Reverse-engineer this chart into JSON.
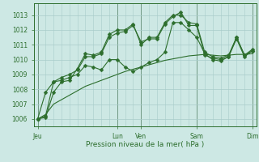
{
  "bg_color": "#cde8e4",
  "grid_color": "#a8ccca",
  "line_color": "#2d6e2d",
  "marker_color": "#2d6e2d",
  "xlabel": "Pression niveau de la mer( hPa )",
  "ylim": [
    1005.5,
    1013.8
  ],
  "yticks": [
    1006,
    1007,
    1008,
    1009,
    1010,
    1011,
    1012,
    1013
  ],
  "xtick_labels": [
    "Jeu",
    "Lun",
    "Ven",
    "Sam",
    "Dim"
  ],
  "xtick_positions": [
    0,
    10,
    13,
    20,
    27
  ],
  "n_points": 28,
  "series1": [
    1006.0,
    1006.1,
    1007.8,
    1008.5,
    1008.6,
    1009.4,
    1010.4,
    1010.3,
    1010.5,
    1011.7,
    1012.0,
    1012.0,
    1012.4,
    1011.0,
    1011.5,
    1011.5,
    1012.5,
    1013.0,
    1013.0,
    1012.5,
    1012.4,
    1010.5,
    1010.2,
    1010.1,
    1010.3,
    1011.5,
    1010.3,
    1010.7
  ],
  "series2": [
    1006.0,
    1007.8,
    1008.5,
    1008.8,
    1009.0,
    1009.3,
    1010.2,
    1010.2,
    1010.4,
    1011.5,
    1011.8,
    1011.9,
    1012.3,
    1011.2,
    1011.4,
    1011.4,
    1012.4,
    1012.9,
    1013.2,
    1012.3,
    1012.3,
    1010.3,
    1010.1,
    1010.0,
    1010.2,
    1011.4,
    1010.2,
    1010.6
  ],
  "series3": [
    1006.0,
    1006.2,
    1008.5,
    1008.6,
    1008.8,
    1009.0,
    1009.6,
    1009.5,
    1009.3,
    1010.0,
    1010.0,
    1009.5,
    1009.2,
    1009.5,
    1009.8,
    1010.0,
    1010.5,
    1012.5,
    1012.5,
    1012.0,
    1011.5,
    1010.4,
    1010.0,
    1009.9,
    1010.2,
    1011.5,
    1010.3,
    1010.6
  ],
  "series4": [
    1006.0,
    1006.3,
    1007.0,
    1007.3,
    1007.6,
    1007.9,
    1008.2,
    1008.4,
    1008.6,
    1008.8,
    1009.0,
    1009.2,
    1009.35,
    1009.5,
    1009.65,
    1009.8,
    1009.95,
    1010.05,
    1010.15,
    1010.25,
    1010.3,
    1010.35,
    1010.3,
    1010.25,
    1010.3,
    1010.35,
    1010.35,
    1010.4
  ],
  "linewidth": 0.8,
  "marker_size": 2.5
}
